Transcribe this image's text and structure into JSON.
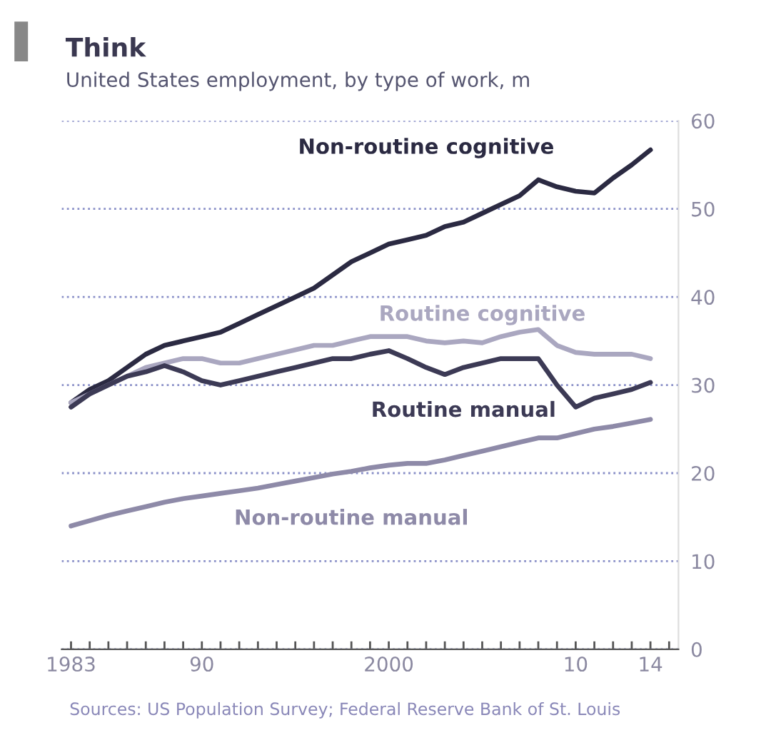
{
  "chart_data": {
    "type": "line",
    "title": "Think",
    "subtitle": "United States employment, by type of work, m",
    "x": [
      1983,
      1984,
      1985,
      1986,
      1987,
      1988,
      1989,
      1990,
      1991,
      1992,
      1993,
      1994,
      1995,
      1996,
      1997,
      1998,
      1999,
      2000,
      2001,
      2002,
      2003,
      2004,
      2005,
      2006,
      2007,
      2008,
      2009,
      2010,
      2011,
      2012,
      2013,
      2014
    ],
    "series": [
      {
        "name": "Non-routine cognitive",
        "color": "#2b2a42",
        "values": [
          28,
          29.5,
          30.5,
          32,
          33.5,
          34.5,
          35,
          35.5,
          36,
          37,
          38,
          39,
          40,
          41,
          42.5,
          44,
          45,
          46,
          46.5,
          47,
          48,
          48.5,
          49.5,
          50.5,
          51.5,
          53.3,
          52.5,
          52,
          51.8,
          53.5,
          55,
          56.7
        ]
      },
      {
        "name": "Routine cognitive",
        "color": "#aaa7c0",
        "values": [
          28,
          29,
          30,
          31,
          32,
          32.5,
          33,
          33,
          32.5,
          32.5,
          33,
          33.5,
          34,
          34.5,
          34.5,
          35,
          35.5,
          35.5,
          35.5,
          35,
          34.8,
          35,
          34.8,
          35.5,
          36,
          36.3,
          34.5,
          33.7,
          33.5,
          33.5,
          33.5,
          33
        ]
      },
      {
        "name": "Routine manual",
        "color": "#3c3a55",
        "values": [
          27.5,
          29,
          30,
          31,
          31.5,
          32.2,
          31.5,
          30.5,
          30,
          30.5,
          31,
          31.5,
          32,
          32.5,
          33,
          33,
          33.5,
          33.9,
          33,
          32,
          31.2,
          32,
          32.5,
          33,
          33,
          33,
          30,
          27.5,
          28.5,
          29,
          29.5,
          30.3
        ]
      },
      {
        "name": "Non-routine manual",
        "color": "#8e8aa8",
        "values": [
          14,
          14.6,
          15.2,
          15.7,
          16.2,
          16.7,
          17.1,
          17.4,
          17.7,
          18,
          18.3,
          18.7,
          19.1,
          19.5,
          19.9,
          20.2,
          20.6,
          20.9,
          21.1,
          21.1,
          21.5,
          22,
          22.5,
          23,
          23.5,
          24,
          24,
          24.5,
          25,
          25.3,
          25.7,
          26.1
        ]
      }
    ],
    "xlim": [
      1982.5,
      2015.5
    ],
    "xticks": [
      {
        "value": 1983,
        "label": "1983"
      },
      {
        "value": 1984,
        "label": null
      },
      {
        "value": 1985,
        "label": null
      },
      {
        "value": 1986,
        "label": null
      },
      {
        "value": 1987,
        "label": null
      },
      {
        "value": 1988,
        "label": null
      },
      {
        "value": 1989,
        "label": null
      },
      {
        "value": 1990,
        "label": "90"
      },
      {
        "value": 1991,
        "label": null
      },
      {
        "value": 1992,
        "label": null
      },
      {
        "value": 1993,
        "label": null
      },
      {
        "value": 1994,
        "label": null
      },
      {
        "value": 1995,
        "label": null
      },
      {
        "value": 1996,
        "label": null
      },
      {
        "value": 1997,
        "label": null
      },
      {
        "value": 1998,
        "label": null
      },
      {
        "value": 1999,
        "label": null
      },
      {
        "value": 2000,
        "label": "2000"
      },
      {
        "value": 2001,
        "label": null
      },
      {
        "value": 2002,
        "label": null
      },
      {
        "value": 2003,
        "label": null
      },
      {
        "value": 2004,
        "label": null
      },
      {
        "value": 2005,
        "label": null
      },
      {
        "value": 2006,
        "label": null
      },
      {
        "value": 2007,
        "label": null
      },
      {
        "value": 2008,
        "label": null
      },
      {
        "value": 2009,
        "label": null
      },
      {
        "value": 2010,
        "label": "10"
      },
      {
        "value": 2011,
        "label": null
      },
      {
        "value": 2012,
        "label": null
      },
      {
        "value": 2013,
        "label": null
      },
      {
        "value": 2014,
        "label": "14"
      },
      {
        "value": 2015,
        "label": null
      }
    ],
    "ylim": [
      0,
      60
    ],
    "yticks": [
      0,
      10,
      20,
      30,
      40,
      50,
      60
    ],
    "grid": "y",
    "legend": false,
    "marker": "none",
    "line_style": "solid",
    "annotations": [
      "Sources: US Population Survey; Federal Reserve Bank of St. Louis"
    ]
  }
}
